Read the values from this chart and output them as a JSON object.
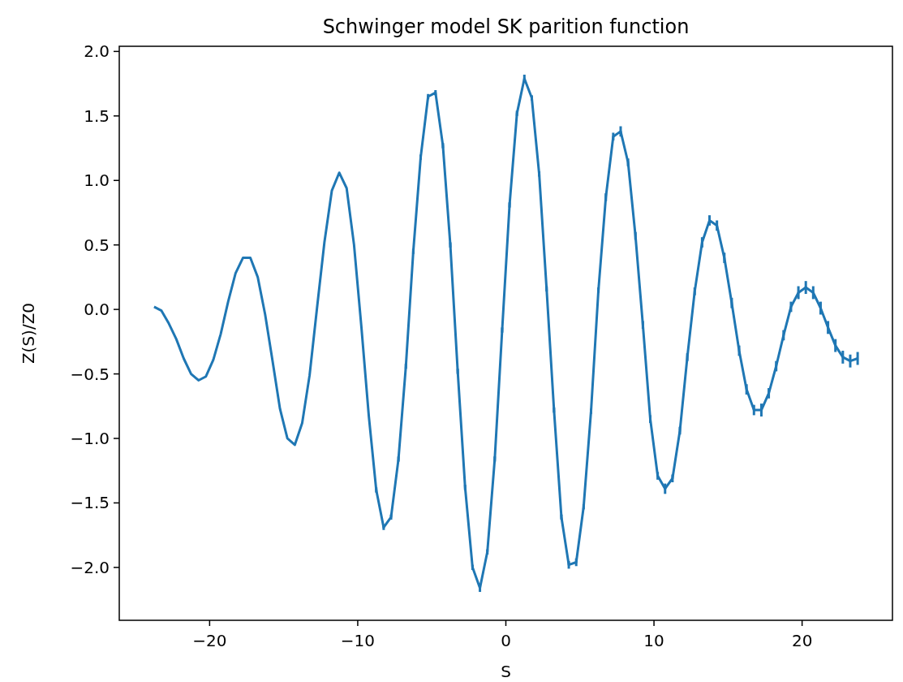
{
  "chart_data": {
    "type": "line",
    "title": "Schwinger model SK parition function",
    "xlabel": "S",
    "ylabel": "Z(S)/Z0",
    "x": [
      -23.75,
      -23.25,
      -22.75,
      -22.25,
      -21.75,
      -21.25,
      -20.75,
      -20.25,
      -19.75,
      -19.25,
      -18.75,
      -18.25,
      -17.75,
      -17.25,
      -16.75,
      -16.25,
      -15.75,
      -15.25,
      -14.75,
      -14.25,
      -13.75,
      -13.25,
      -12.75,
      -12.25,
      -11.75,
      -11.25,
      -10.75,
      -10.25,
      -9.75,
      -9.25,
      -8.75,
      -8.25,
      -7.75,
      -7.25,
      -6.75,
      -6.25,
      -5.75,
      -5.25,
      -4.75,
      -4.25,
      -3.75,
      -3.25,
      -2.75,
      -2.25,
      -1.75,
      -1.25,
      -0.75,
      -0.25,
      0.25,
      0.75,
      1.25,
      1.75,
      2.25,
      2.75,
      3.25,
      3.75,
      4.25,
      4.75,
      5.25,
      5.75,
      6.25,
      6.75,
      7.25,
      7.75,
      8.25,
      8.75,
      9.25,
      9.75,
      10.25,
      10.75,
      11.25,
      11.75,
      12.25,
      12.75,
      13.25,
      13.75,
      14.25,
      14.75,
      15.25,
      15.75,
      16.25,
      16.75,
      17.25,
      17.75,
      18.25,
      18.75,
      19.25,
      19.75,
      20.25,
      20.75,
      21.25,
      21.75,
      22.25,
      22.75,
      23.25,
      23.75
    ],
    "series": [
      {
        "color": "#1f77b4",
        "values": [
          0.02,
          -0.01,
          -0.11,
          -0.23,
          -0.38,
          -0.5,
          -0.55,
          -0.52,
          -0.39,
          -0.19,
          0.06,
          0.28,
          0.4,
          0.4,
          0.25,
          -0.04,
          -0.4,
          -0.77,
          -1.0,
          -1.05,
          -0.88,
          -0.51,
          0.01,
          0.52,
          0.92,
          1.06,
          0.94,
          0.5,
          -0.14,
          -0.83,
          -1.4,
          -1.69,
          -1.61,
          -1.16,
          -0.44,
          0.45,
          1.18,
          1.65,
          1.68,
          1.27,
          0.5,
          -0.48,
          -1.38,
          -2.0,
          -2.16,
          -1.88,
          -1.16,
          -0.16,
          0.81,
          1.52,
          1.79,
          1.64,
          1.05,
          0.16,
          -0.78,
          -1.61,
          -1.98,
          -1.96,
          -1.53,
          -0.79,
          0.15,
          0.87,
          1.34,
          1.38,
          1.14,
          0.57,
          -0.12,
          -0.85,
          -1.29,
          -1.39,
          -1.31,
          -0.94,
          -0.37,
          0.14,
          0.52,
          0.69,
          0.65,
          0.4,
          0.05,
          -0.32,
          -0.62,
          -0.78,
          -0.78,
          -0.65,
          -0.44,
          -0.2,
          0.02,
          0.13,
          0.17,
          0.13,
          0.01,
          -0.14,
          -0.28,
          -0.37,
          -0.4,
          -0.38
        ],
        "errors": [
          null,
          null,
          null,
          null,
          null,
          null,
          null,
          null,
          null,
          null,
          null,
          null,
          null,
          null,
          null,
          null,
          null,
          null,
          null,
          null,
          null,
          null,
          null,
          null,
          null,
          null,
          null,
          null,
          null,
          null,
          0.02,
          0.02,
          0.02,
          0.02,
          0.02,
          0.02,
          0.02,
          0.02,
          0.02,
          0.02,
          0.02,
          0.02,
          0.02,
          0.02,
          0.03,
          0.02,
          0.02,
          0.02,
          0.02,
          0.02,
          0.03,
          0.02,
          0.02,
          0.02,
          0.02,
          0.02,
          0.03,
          0.03,
          0.02,
          0.02,
          0.02,
          0.03,
          0.03,
          0.04,
          0.03,
          0.03,
          0.03,
          0.03,
          0.03,
          0.04,
          0.03,
          0.03,
          0.03,
          0.03,
          0.04,
          0.04,
          0.04,
          0.04,
          0.04,
          0.04,
          0.04,
          0.04,
          0.05,
          0.04,
          0.04,
          0.04,
          0.04,
          0.05,
          0.05,
          0.05,
          0.05,
          0.05,
          0.05,
          0.05,
          0.05,
          0.05
        ]
      }
    ],
    "marker": "none",
    "line_style": "solid",
    "xlim": [
      -26.1,
      26.1
    ],
    "xticks": [
      {
        "value": -20,
        "label": "−20"
      },
      {
        "value": -10,
        "label": "−10"
      },
      0,
      10,
      20
    ],
    "ylim": [
      -2.41,
      2.04
    ],
    "yticks": [
      {
        "value": -2,
        "label": "−2.0"
      },
      {
        "value": -1.5,
        "label": "−1.5"
      },
      {
        "value": -1,
        "label": "−1.0"
      },
      {
        "value": -0.5,
        "label": "−0.5"
      },
      {
        "value": 0,
        "label": "0.0"
      },
      {
        "value": 0.5,
        "label": "0.5"
      },
      {
        "value": 1,
        "label": "1.0"
      },
      {
        "value": 1.5,
        "label": "1.5"
      },
      {
        "value": 2,
        "label": "2.0"
      }
    ]
  }
}
